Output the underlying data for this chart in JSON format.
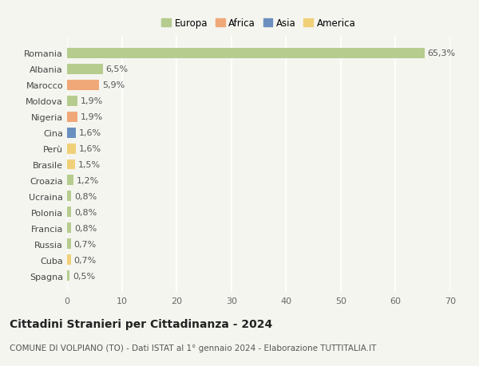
{
  "countries": [
    "Romania",
    "Albania",
    "Marocco",
    "Moldova",
    "Nigeria",
    "Cina",
    "Perù",
    "Brasile",
    "Croazia",
    "Ucraina",
    "Polonia",
    "Francia",
    "Russia",
    "Cuba",
    "Spagna"
  ],
  "values": [
    65.3,
    6.5,
    5.9,
    1.9,
    1.9,
    1.6,
    1.6,
    1.5,
    1.2,
    0.8,
    0.8,
    0.8,
    0.7,
    0.7,
    0.5
  ],
  "labels": [
    "65,3%",
    "6,5%",
    "5,9%",
    "1,9%",
    "1,9%",
    "1,6%",
    "1,6%",
    "1,5%",
    "1,2%",
    "0,8%",
    "0,8%",
    "0,8%",
    "0,7%",
    "0,7%",
    "0,5%"
  ],
  "continents": [
    "Europa",
    "Europa",
    "Africa",
    "Europa",
    "Africa",
    "Asia",
    "America",
    "America",
    "Europa",
    "Europa",
    "Europa",
    "Europa",
    "Europa",
    "America",
    "Europa"
  ],
  "colors": {
    "Europa": "#b5cc8e",
    "Africa": "#f0a878",
    "Asia": "#6b8fbf",
    "America": "#f0d078"
  },
  "title": "Cittadini Stranieri per Cittadinanza - 2024",
  "subtitle": "COMUNE DI VOLPIANO (TO) - Dati ISTAT al 1° gennaio 2024 - Elaborazione TUTTITALIA.IT",
  "xlim": [
    0,
    70
  ],
  "xticks": [
    0,
    10,
    20,
    30,
    40,
    50,
    60,
    70
  ],
  "background_color": "#f5f5f0",
  "bar_height": 0.65,
  "grid_color": "#ffffff",
  "label_fontsize": 8,
  "tick_fontsize": 8,
  "title_fontsize": 10,
  "subtitle_fontsize": 7.5,
  "legend_order": [
    "Europa",
    "Africa",
    "Asia",
    "America"
  ]
}
